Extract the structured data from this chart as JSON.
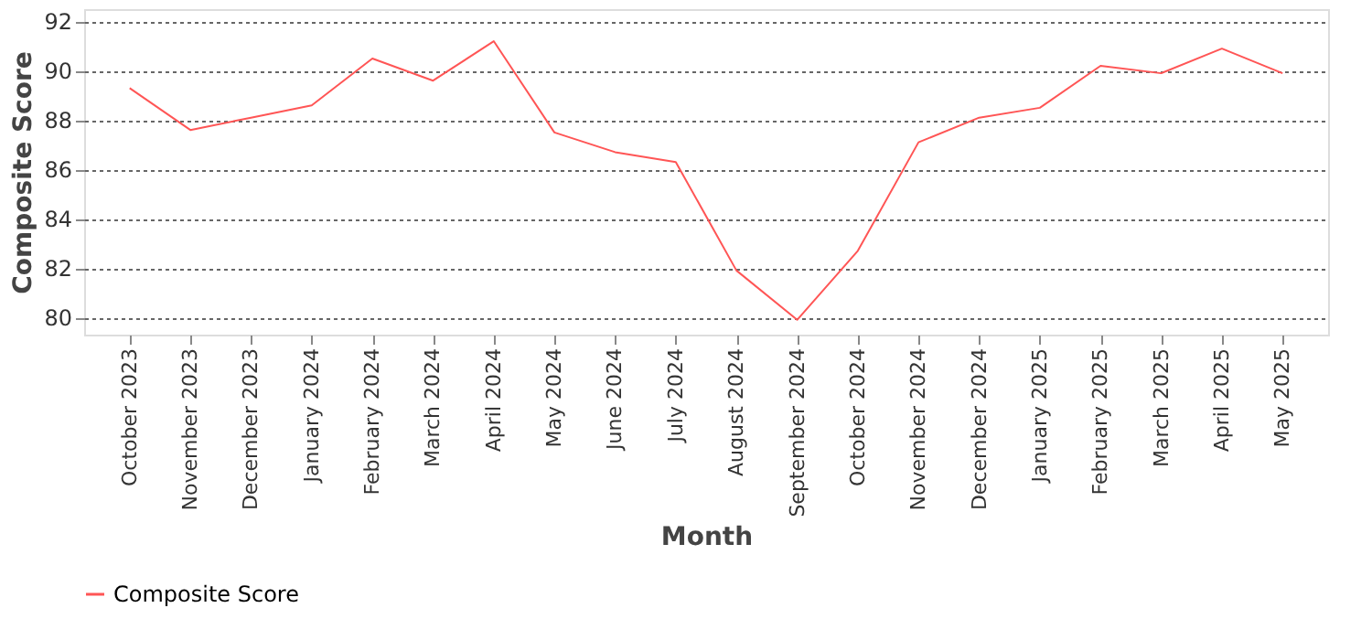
{
  "chart_data": {
    "type": "line",
    "xlabel": "Month",
    "ylabel": "Composite Score",
    "categories": [
      "October 2023",
      "November 2023",
      "December 2023",
      "January 2024",
      "February 2024",
      "March 2024",
      "April 2024",
      "May 2024",
      "June 2024",
      "July 2024",
      "August 2024",
      "September 2024",
      "October 2024",
      "November 2024",
      "December 2024",
      "January 2025",
      "February 2025",
      "March 2025",
      "April 2025",
      "May 2025"
    ],
    "series": [
      {
        "name": "Composite Score",
        "color": "#ff5555",
        "values": [
          89.3,
          87.6,
          88.1,
          88.6,
          90.5,
          89.6,
          91.2,
          87.5,
          86.7,
          86.3,
          81.9,
          79.9,
          82.7,
          87.1,
          88.1,
          88.5,
          90.2,
          89.9,
          90.9,
          89.9
        ]
      }
    ],
    "ylim": [
      79.3,
      92.5
    ],
    "yticks": [
      80,
      82,
      84,
      86,
      88,
      90,
      92
    ],
    "grid": "y",
    "legend": "bottom",
    "marker": "none",
    "line_style": "solid"
  }
}
